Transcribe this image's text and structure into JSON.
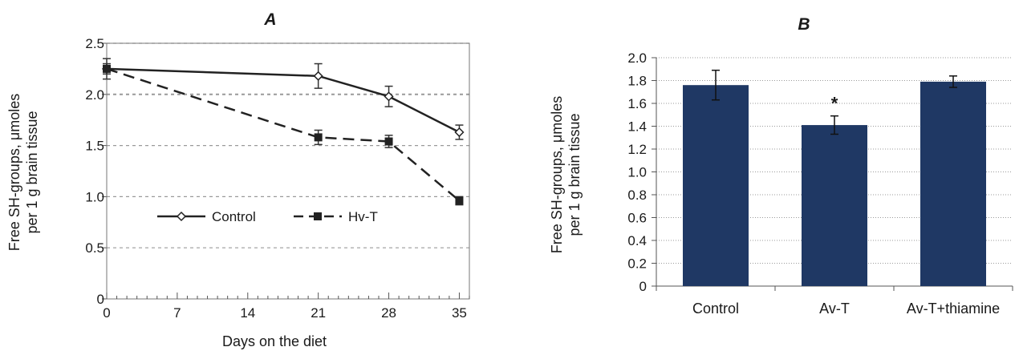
{
  "chart_data": [
    {
      "panel": "A",
      "type": "line",
      "xlabel": "Days on the diet",
      "ylabel": [
        "Free SH-groups, μmoles",
        "per 1 g brain tissue"
      ],
      "xlim": [
        0,
        36
      ],
      "ylim": [
        0,
        2.5
      ],
      "x_ticks": [
        0,
        7,
        14,
        21,
        28,
        35
      ],
      "y_ticks": [
        0,
        0.5,
        1.0,
        1.5,
        2.0,
        2.5
      ],
      "y_tick_labels": [
        "0",
        "0.5",
        "1.0",
        "1.5",
        "2.0",
        "2.5"
      ],
      "grid": "horizontal-dashed",
      "legend": "inside-lower-middle",
      "series": [
        {
          "name": "Control",
          "style": "solid",
          "marker": "diamond-open",
          "x": [
            0,
            21,
            28,
            35
          ],
          "y": [
            2.25,
            2.18,
            1.98,
            1.63
          ],
          "err": [
            0.1,
            0.12,
            0.1,
            0.07
          ]
        },
        {
          "name": "Hv-T",
          "style": "dashed",
          "marker": "square-filled",
          "x": [
            0,
            21,
            28,
            35
          ],
          "y": [
            2.25,
            1.58,
            1.54,
            0.96
          ],
          "err": [
            0.05,
            0.07,
            0.06,
            0.04
          ]
        }
      ]
    },
    {
      "panel": "B",
      "type": "bar",
      "ylabel": [
        "Free SH-groups, μmoles",
        "per 1 g brain tissue"
      ],
      "ylim": [
        0,
        2.0
      ],
      "y_ticks": [
        0,
        0.2,
        0.4,
        0.6,
        0.8,
        1.0,
        1.2,
        1.4,
        1.6,
        1.8,
        2.0
      ],
      "y_tick_labels": [
        "0",
        "0.2",
        "0.4",
        "0.6",
        "0.8",
        "1.0",
        "1.2",
        "1.4",
        "1.6",
        "1.8",
        "2.0"
      ],
      "grid": "horizontal-dotted",
      "bar_color": "#1f3864",
      "categories": [
        "Control",
        "Av-T",
        "Av-T+thiamine"
      ],
      "values": [
        1.76,
        1.41,
        1.79
      ],
      "err": [
        0.13,
        0.08,
        0.05
      ],
      "annotations": [
        "",
        "*",
        ""
      ]
    }
  ]
}
